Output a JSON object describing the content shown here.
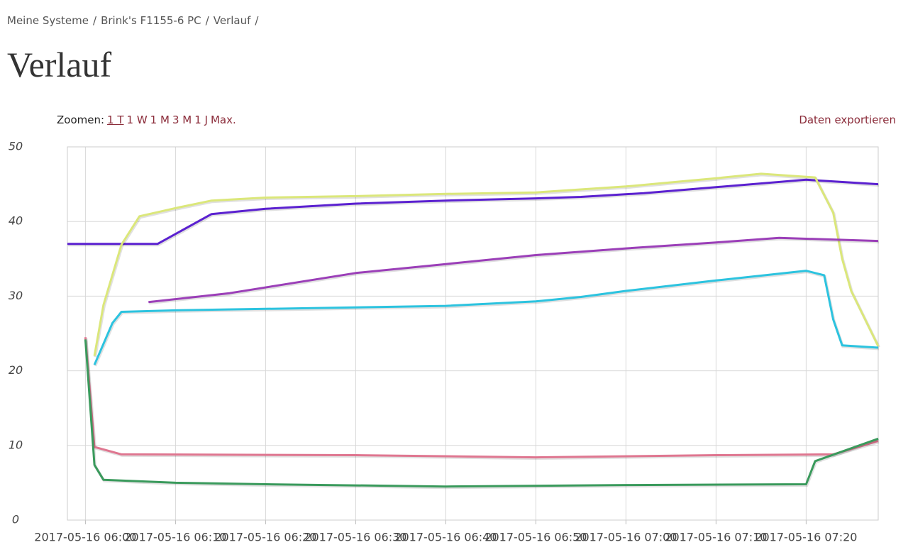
{
  "breadcrumb": [
    "Meine Systeme",
    "Brink's F1155-6 PC",
    "Verlauf"
  ],
  "heading": "Verlauf",
  "zoom": {
    "label": "Zoomen:",
    "options": [
      "1 T",
      "1 W",
      "1 M",
      "3 M",
      "1 J",
      "Max."
    ]
  },
  "export": "Daten exportieren",
  "chart_data": {
    "type": "line",
    "xlim": [
      "2017-05-16 05:58",
      "2017-05-16 07:28"
    ],
    "xticks": [
      "2017-05-16 06:00",
      "2017-05-16 06:10",
      "2017-05-16 06:20",
      "2017-05-16 06:30",
      "2017-05-16 06:40",
      "2017-05-16 06:50",
      "2017-05-16 07:00",
      "2017-05-16 07:10",
      "2017-05-16 07:20"
    ],
    "ylim": [
      0,
      50
    ],
    "yticks": [
      0,
      10,
      20,
      30,
      40,
      50
    ],
    "grid": true,
    "series": [
      {
        "color": "#5b21d0",
        "x": [
          "2017-05-16 05:58",
          "2017-05-16 06:08",
          "2017-05-16 06:14",
          "2017-05-16 06:20",
          "2017-05-16 06:30",
          "2017-05-16 06:40",
          "2017-05-16 06:50",
          "2017-05-16 06:55",
          "2017-05-16 07:02",
          "2017-05-16 07:10",
          "2017-05-16 07:20",
          "2017-05-16 07:28"
        ],
        "values": [
          37.0,
          37.0,
          41.0,
          41.7,
          42.4,
          42.8,
          43.1,
          43.3,
          43.8,
          44.6,
          45.6,
          45.0
        ]
      },
      {
        "color": "#dbe77a",
        "x": [
          "2017-05-16 06:01",
          "2017-05-16 06:02",
          "2017-05-16 06:04",
          "2017-05-16 06:06",
          "2017-05-16 06:10",
          "2017-05-16 06:14",
          "2017-05-16 06:20",
          "2017-05-16 06:30",
          "2017-05-16 06:40",
          "2017-05-16 06:50",
          "2017-05-16 07:00",
          "2017-05-16 07:10",
          "2017-05-16 07:15",
          "2017-05-16 07:21",
          "2017-05-16 07:23",
          "2017-05-16 07:24",
          "2017-05-16 07:25",
          "2017-05-16 07:28"
        ],
        "values": [
          22.0,
          28.8,
          36.9,
          40.7,
          41.8,
          42.8,
          43.2,
          43.4,
          43.7,
          43.9,
          44.7,
          45.8,
          46.4,
          45.9,
          41.2,
          35.0,
          30.7,
          23.3
        ]
      },
      {
        "color": "#9b3fb8",
        "x": [
          "2017-05-16 06:07",
          "2017-05-16 06:16",
          "2017-05-16 06:30",
          "2017-05-16 06:40",
          "2017-05-16 06:50",
          "2017-05-16 07:00",
          "2017-05-16 07:10",
          "2017-05-16 07:17",
          "2017-05-16 07:28"
        ],
        "values": [
          29.2,
          30.4,
          33.1,
          34.3,
          35.5,
          36.4,
          37.2,
          37.8,
          37.4
        ]
      },
      {
        "color": "#2cc3df",
        "x": [
          "2017-05-16 06:01",
          "2017-05-16 06:03",
          "2017-05-16 06:04",
          "2017-05-16 06:10",
          "2017-05-16 06:20",
          "2017-05-16 06:30",
          "2017-05-16 06:40",
          "2017-05-16 06:50",
          "2017-05-16 06:55",
          "2017-05-16 07:00",
          "2017-05-16 07:10",
          "2017-05-16 07:20",
          "2017-05-16 07:22",
          "2017-05-16 07:23",
          "2017-05-16 07:24",
          "2017-05-16 07:28"
        ],
        "values": [
          20.8,
          26.4,
          27.9,
          28.1,
          28.3,
          28.5,
          28.7,
          29.3,
          29.9,
          30.7,
          32.1,
          33.4,
          32.8,
          26.9,
          23.4,
          23.1
        ]
      },
      {
        "color": "#df7690",
        "x": [
          "2017-05-16 06:00",
          "2017-05-16 06:01",
          "2017-05-16 06:04",
          "2017-05-16 06:30",
          "2017-05-16 06:50",
          "2017-05-16 07:10",
          "2017-05-16 07:23",
          "2017-05-16 07:28"
        ],
        "values": [
          24.5,
          9.8,
          8.8,
          8.7,
          8.4,
          8.7,
          8.8,
          10.6
        ]
      },
      {
        "color": "#3a9a5c",
        "x": [
          "2017-05-16 06:00",
          "2017-05-16 06:01",
          "2017-05-16 06:02",
          "2017-05-16 06:10",
          "2017-05-16 06:20",
          "2017-05-16 06:40",
          "2017-05-16 07:00",
          "2017-05-16 07:20",
          "2017-05-16 07:21",
          "2017-05-16 07:28"
        ],
        "values": [
          24.2,
          7.4,
          5.4,
          5.0,
          4.8,
          4.5,
          4.7,
          4.8,
          7.9,
          10.9
        ]
      }
    ]
  }
}
